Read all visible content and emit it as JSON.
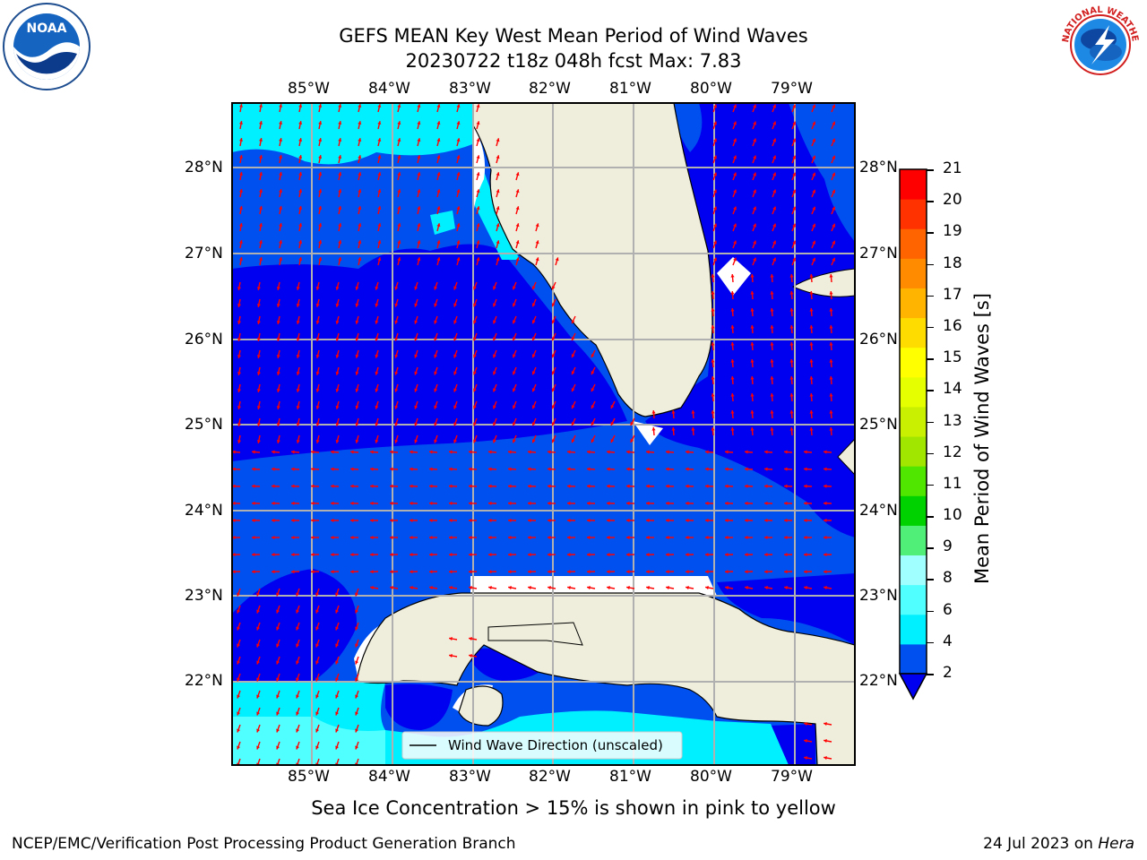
{
  "title": {
    "line1": "GEFS MEAN Key West Mean Period of Wind Waves",
    "line2": "20230722 t18z 048h fcst   Max: 7.83"
  },
  "logos": {
    "left": "noaa-logo",
    "right": "nws-logo",
    "left_text": "NOAA",
    "right_text": "NATIONAL WEATHER SERVICE"
  },
  "map": {
    "lon_labels": [
      "85°W",
      "84°W",
      "83°W",
      "82°W",
      "81°W",
      "80°W",
      "79°W"
    ],
    "lat_labels": [
      "28°N",
      "27°N",
      "26°N",
      "25°N",
      "24°N",
      "23°N",
      "22°N"
    ],
    "legend_label": "Wind Wave Direction (unscaled)",
    "arrow_color": "#ff0000"
  },
  "colorbar": {
    "title": "Mean Period of Wind Waves [s]",
    "ticks": [
      "21",
      "20",
      "19",
      "18",
      "17",
      "16",
      "15",
      "14",
      "13",
      "12",
      "11",
      "10",
      "9",
      "8",
      "6",
      "4",
      "2"
    ],
    "colors": [
      "#0050f0",
      "#00f0ff",
      "#50ffff",
      "#a0ffff",
      "#50f078",
      "#00d200",
      "#50e600",
      "#a0e600",
      "#c8f000",
      "#e6ff00",
      "#ffff00",
      "#ffdc00",
      "#ffb400",
      "#ff8c00",
      "#ff6400",
      "#ff3200",
      "#ff0000"
    ]
  },
  "caption": "Sea Ice Concentration > 15% is shown in pink to yellow",
  "footer": {
    "left": "NCEP/EMC/Verification Post Processing Product Generation Branch",
    "right_date": "24 Jul 2023 on ",
    "right_host": "Hera"
  }
}
